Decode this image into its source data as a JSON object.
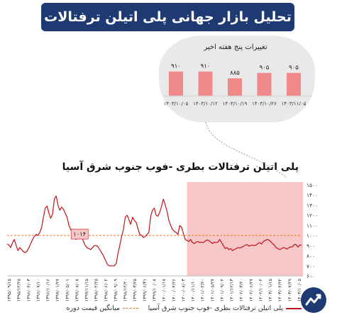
{
  "header": {
    "title": "تحلیل بازار جهانی پلی اتیلن ترفتالات"
  },
  "colors": {
    "banner": "#1f3a73",
    "series": "#c0141b",
    "average": "#e8752a",
    "highlight": "#f4b3b3",
    "bars": "#f08a8a",
    "inset_bg": "#e9e9e9"
  },
  "chart_data": [
    {
      "type": "bar",
      "title": "تغییرات پنج هفته اخیر",
      "categories": [
        "۱۴۰۳/۱۰/۰۵",
        "۱۴۰۳/۱۰/۱۲",
        "۱۴۰۳/۱۰/۱۹",
        "۱۴۰۳/۱۰/۲۶",
        "۱۴۰۳/۱۱/۰۵"
      ],
      "values": [
        910,
        910,
        885,
        905,
        905
      ],
      "value_labels": [
        "۹۱۰",
        "۹۱۰",
        "۸۸۵",
        "۹۰۵",
        "۹۰۵"
      ],
      "ylim": [
        820,
        930
      ]
    },
    {
      "type": "line",
      "title": "پلی اتیلن ترفتالات بطری -فوب جنوب شرق آسیا",
      "ylim": [
        600,
        1500
      ],
      "yticks": [
        600,
        700,
        800,
        900,
        1000,
        1100,
        1200,
        1300,
        1400,
        1500
      ],
      "ytick_labels": [
        "۶۰۰",
        "۷۰۰",
        "۸۰۰",
        "۹۰۰",
        "۱۰۰۰",
        "۱۱۰۰",
        "۱۲۰۰",
        "۱۳۰۰",
        "۱۴۰۰",
        "۱۵۰۰"
      ],
      "average": 1000,
      "annotation": {
        "text": "۱۰۱۴",
        "index": 36,
        "value": 1014
      },
      "highlight_from_index": 99,
      "xtick_labels": [
        "۱۳۹۵/۰۹/۱۵",
        "۱۳۹۵/۱۲/۲۵",
        "۱۳۹۶/۰۴/۰۳",
        "۱۳۹۶/۰۷/۱۰",
        "۱۳۹۶/۱۰/۱۶",
        "۱۳۹۷/۰۱/۲۷",
        "۱۳۹۷/۰۵/۰۱",
        "۱۳۹۷/۰۸/۰۸",
        "۱۳۹۷/۱۱/۱۵",
        "۱۳۹۸/۰۲/۲۵",
        "۱۳۹۸/۰۶/۰۲",
        "۱۳۹۸/۰۹/۰۹",
        "۱۳۹۸/۱۲/۲۰",
        "۱۳۹۹/۰۳/۲۵",
        "۱۳۹۹/۰۶/۳۱",
        "۱۳۹۹/۱۰/۰۸",
        "۱۴۰۰/۰۱/۱۸",
        "۱۴۰۰/۰۴/۲۶",
        "۱۴۰۰/۰۸/۰۳",
        "۱۴۰۰/۱۱/۱۰",
        "۱۴۰۱/۰۲/۲۰",
        "۱۴۰۱/۰۵/۲۷",
        "۱۴۰۱/۰۹/۰۴",
        "۱۴۰۱/۱۲/۱۳",
        "۱۴۰۲/۰۳/۲۰",
        "۱۴۰۲/۰۶/۲۷",
        "۱۴۰۲/۱۰/۰۴",
        "۱۴۰۳/۰۱/۱۵",
        "۱۴۰۳/۰۴/۲۲",
        "۱۴۰۳/۰۷/۲۹",
        "۱۴۰۳/۱۰/۰۵"
      ],
      "series": [
        {
          "name": "پلی اتیلن ترفتالات بطری -فوب جنوب شرق آسیا",
          "values": [
            915,
            905,
            880,
            930,
            960,
            900,
            850,
            880,
            860,
            840,
            830,
            845,
            880,
            920,
            960,
            990,
            1010,
            1000,
            1030,
            1080,
            1180,
            1270,
            1290,
            1220,
            1170,
            1210,
            1360,
            1390,
            1300,
            1250,
            1280,
            1260,
            1220,
            1180,
            1100,
            1060,
            1014,
            980,
            960,
            1000,
            1050,
            990,
            940,
            900,
            880,
            870,
            860,
            880,
            900,
            900,
            890,
            860,
            830,
            800,
            760,
            720,
            700,
            700,
            700,
            700,
            720,
            820,
            900,
            990,
            1060,
            1180,
            1200,
            1160,
            1110,
            1180,
            1150,
            1130,
            1070,
            1010,
            1000,
            980,
            990,
            1010,
            1030,
            1190,
            1250,
            1270,
            1200,
            1190,
            1230,
            1290,
            1360,
            1300,
            1240,
            1150,
            1100,
            1060,
            1040,
            1030,
            1010,
            1100,
            1080,
            1020,
            960,
            950,
            940,
            960,
            930,
            920,
            935,
            940,
            930,
            935,
            930,
            945,
            955,
            950,
            935,
            920,
            935,
            930,
            935,
            960,
            930,
            900,
            870,
            880,
            860,
            870,
            850,
            860,
            870,
            880,
            875,
            885,
            890,
            905,
            910,
            895,
            900,
            905,
            900,
            905,
            920,
            930,
            915,
            940,
            950,
            960,
            955,
            940,
            920,
            905,
            880,
            870,
            860,
            870,
            880,
            875,
            865,
            880,
            885,
            890,
            910,
            910,
            885,
            905,
            905
          ]
        }
      ],
      "legend": [
        {
          "name": "پلی اتیلن ترفتالات بطری -فوب جنوب شرق آسیا",
          "style": "solid"
        },
        {
          "name": "میانگین قیمت دوره",
          "style": "dashed"
        }
      ]
    }
  ]
}
